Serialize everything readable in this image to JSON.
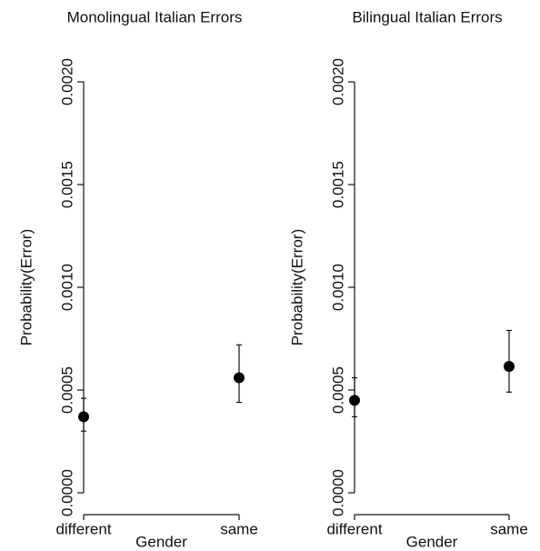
{
  "chart_data": [
    {
      "type": "errorpoint",
      "title": "Monolingual Italian Errors",
      "xlabel": "Gender",
      "ylabel": "Probability(Error)",
      "categories": [
        "different",
        "same"
      ],
      "values": [
        0.00037,
        0.00056
      ],
      "lower": [
        0.0003,
        0.00044
      ],
      "upper": [
        0.00046,
        0.00072
      ],
      "color": "#000000",
      "ylim": [
        0,
        0.002
      ],
      "yticks": [
        {
          "value": 0,
          "label": "0.0000"
        },
        {
          "value": 0.0005,
          "label": "0.0005"
        },
        {
          "value": 0.001,
          "label": "0.0010"
        },
        {
          "value": 0.0015,
          "label": "0.0015"
        },
        {
          "value": 0.002,
          "label": "0.0020"
        }
      ]
    },
    {
      "type": "errorpoint",
      "title": "Bilingual Italian Errors",
      "xlabel": "Gender",
      "ylabel": "Probability(Error)",
      "categories": [
        "different",
        "same"
      ],
      "values": [
        0.00045,
        0.000615
      ],
      "lower": [
        0.00037,
        0.00049
      ],
      "upper": [
        0.00056,
        0.00079
      ],
      "color": "#000000",
      "ylim": [
        0,
        0.002
      ],
      "yticks": [
        {
          "value": 0,
          "label": "0.0000"
        },
        {
          "value": 0.0005,
          "label": "0.0005"
        },
        {
          "value": 0.001,
          "label": "0.0010"
        },
        {
          "value": 0.0015,
          "label": "0.0015"
        },
        {
          "value": 0.002,
          "label": "0.0020"
        }
      ]
    }
  ]
}
